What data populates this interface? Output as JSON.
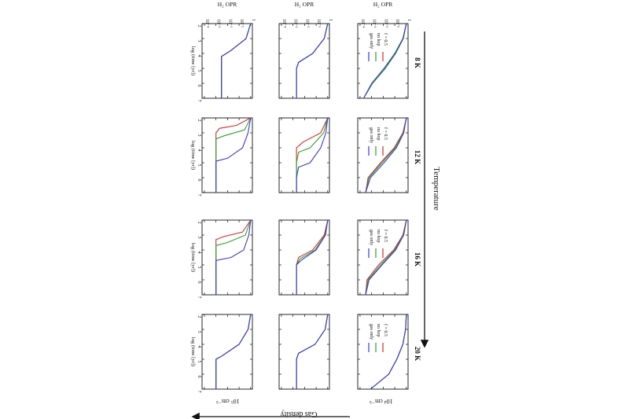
{
  "chart_data": {
    "type": "line",
    "layout": "grid of 3 density rows x 4 temperature columns, figure rotated 90 degrees clockwise",
    "y_axis_label": "H₂ OPR",
    "x_axis_label": "log (time [yr])",
    "x_ticks": [
      2,
      3,
      4,
      5,
      6,
      7
    ],
    "y_ticks": [
      "1",
      "10⁻¹",
      "10⁻²",
      "10⁻³",
      "10⁻⁴"
    ],
    "y_scale": "log",
    "xlim": [
      2,
      7
    ],
    "temperature_arrow_label": "Temperature",
    "density_arrow_label": "Gas density",
    "temperatures": [
      "8 K",
      "12 K",
      "16 K",
      "20 K"
    ],
    "density_labels": [
      "10⁴ cm⁻³",
      "10⁵ cm⁻³"
    ],
    "legend": [
      "f = 0.5",
      "no hop",
      "gas only"
    ],
    "colors": {
      "f05": "#d62a2a",
      "nohop": "#2aa02a",
      "gasonly": "#3a3ad6",
      "axis": "#111111"
    },
    "panels": [
      {
        "row": 0,
        "col": 0,
        "series": [
          {
            "name": "f = 0.5",
            "x": [
              2,
              3,
              4,
              5,
              6,
              7
            ],
            "y": [
              1.0,
              0.55,
              0.12,
              0.015,
              0.0012,
              0.0002
            ]
          },
          {
            "name": "no hop",
            "x": [
              2,
              3,
              4,
              5,
              6,
              7
            ],
            "y": [
              1.0,
              0.55,
              0.12,
              0.015,
              0.0012,
              0.0002
            ]
          },
          {
            "name": "gas only",
            "x": [
              2,
              3,
              4,
              5,
              6,
              7
            ],
            "y": [
              1.0,
              0.5,
              0.1,
              0.012,
              0.001,
              0.0002
            ]
          }
        ]
      },
      {
        "row": 0,
        "col": 1,
        "series": [
          {
            "name": "f = 0.5",
            "x": [
              2,
              3,
              4,
              5,
              6,
              7
            ],
            "y": [
              1.0,
              0.5,
              0.09,
              0.006,
              0.0005,
              0.0003
            ]
          },
          {
            "name": "no hop",
            "x": [
              2,
              3,
              4,
              5,
              6,
              7
            ],
            "y": [
              1.0,
              0.55,
              0.11,
              0.008,
              0.0006,
              0.0003
            ]
          },
          {
            "name": "gas only",
            "x": [
              2,
              3,
              4,
              5,
              6,
              7
            ],
            "y": [
              1.0,
              0.6,
              0.14,
              0.012,
              0.0008,
              0.0003
            ]
          }
        ]
      },
      {
        "row": 0,
        "col": 2,
        "series": [
          {
            "name": "f = 0.5",
            "x": [
              2,
              3,
              4,
              5,
              6,
              7
            ],
            "y": [
              1.0,
              0.5,
              0.08,
              0.004,
              0.0004,
              0.0003
            ]
          },
          {
            "name": "no hop",
            "x": [
              2,
              3,
              4,
              5,
              6,
              7
            ],
            "y": [
              1.0,
              0.55,
              0.1,
              0.006,
              0.0005,
              0.0003
            ]
          },
          {
            "name": "gas only",
            "x": [
              2,
              3,
              4,
              5,
              6,
              7
            ],
            "y": [
              1.0,
              0.6,
              0.12,
              0.008,
              0.0006,
              0.0003
            ]
          }
        ]
      },
      {
        "row": 0,
        "col": 3,
        "series": [
          {
            "name": "f = 0.5",
            "x": [
              2,
              3,
              4,
              5,
              6,
              7
            ],
            "y": [
              1.0,
              0.85,
              0.5,
              0.15,
              0.03,
              0.0008
            ]
          },
          {
            "name": "no hop",
            "x": [
              2,
              3,
              4,
              5,
              6,
              7
            ],
            "y": [
              1.0,
              0.85,
              0.5,
              0.15,
              0.03,
              0.0008
            ]
          },
          {
            "name": "gas only",
            "x": [
              2,
              3,
              4,
              5,
              6,
              7
            ],
            "y": [
              1.0,
              0.85,
              0.5,
              0.15,
              0.03,
              0.0008
            ]
          }
        ]
      },
      {
        "row": 1,
        "col": 0,
        "series": [
          {
            "name": "f = 0.5",
            "x": [
              2,
              3,
              4,
              4.6,
              5,
              6,
              7
            ],
            "y": [
              1.0,
              0.5,
              0.05,
              0.003,
              0.002,
              0.002,
              0.002
            ]
          },
          {
            "name": "no hop",
            "x": [
              2,
              3,
              4,
              4.6,
              5,
              6,
              7
            ],
            "y": [
              1.0,
              0.5,
              0.05,
              0.003,
              0.002,
              0.002,
              0.002
            ]
          },
          {
            "name": "gas only",
            "x": [
              2,
              3,
              4,
              4.6,
              5,
              6,
              7
            ],
            "y": [
              1.0,
              0.5,
              0.05,
              0.003,
              0.002,
              0.002,
              0.002
            ]
          }
        ]
      },
      {
        "row": 1,
        "col": 1,
        "series": [
          {
            "name": "f = 0.5",
            "x": [
              2,
              3,
              3.6,
              4,
              5,
              6,
              7
            ],
            "y": [
              1.0,
              0.25,
              0.008,
              0.002,
              0.002,
              0.002,
              0.002
            ]
          },
          {
            "name": "no hop",
            "x": [
              2,
              3,
              4,
              4.3,
              5,
              6,
              7
            ],
            "y": [
              1.0,
              0.45,
              0.03,
              0.003,
              0.002,
              0.002,
              0.002
            ]
          },
          {
            "name": "gas only",
            "x": [
              2,
              3,
              4,
              5,
              5.3,
              6,
              7
            ],
            "y": [
              1.0,
              0.7,
              0.25,
              0.03,
              0.003,
              0.002,
              0.002
            ]
          }
        ]
      },
      {
        "row": 1,
        "col": 2,
        "series": [
          {
            "name": "f = 0.5",
            "x": [
              2,
              3,
              4,
              4.5,
              5,
              6,
              7
            ],
            "y": [
              1.0,
              0.5,
              0.05,
              0.003,
              0.002,
              0.002,
              0.002
            ]
          },
          {
            "name": "no hop",
            "x": [
              2,
              3,
              4,
              4.6,
              5,
              6,
              7
            ],
            "y": [
              1.0,
              0.6,
              0.08,
              0.004,
              0.002,
              0.002,
              0.002
            ]
          },
          {
            "name": "gas only",
            "x": [
              2,
              3,
              4,
              4.7,
              5,
              6,
              7
            ],
            "y": [
              1.0,
              0.65,
              0.1,
              0.005,
              0.002,
              0.002,
              0.002
            ]
          }
        ]
      },
      {
        "row": 1,
        "col": 3,
        "series": [
          {
            "name": "f = 0.5",
            "x": [
              2,
              3,
              4,
              4.6,
              5,
              6,
              7
            ],
            "y": [
              1.0,
              0.6,
              0.08,
              0.003,
              0.002,
              0.002,
              0.002
            ]
          },
          {
            "name": "no hop",
            "x": [
              2,
              3,
              4,
              4.6,
              5,
              6,
              7
            ],
            "y": [
              1.0,
              0.6,
              0.08,
              0.003,
              0.002,
              0.002,
              0.002
            ]
          },
          {
            "name": "gas only",
            "x": [
              2,
              3,
              4,
              4.6,
              5,
              6,
              7
            ],
            "y": [
              1.0,
              0.6,
              0.08,
              0.003,
              0.002,
              0.002,
              0.002
            ]
          }
        ]
      },
      {
        "row": 2,
        "col": 0,
        "series": [
          {
            "name": "f = 0.5",
            "x": [
              2,
              3,
              3.8,
              4.2,
              5,
              6,
              7
            ],
            "y": [
              1.0,
              0.4,
              0.02,
              0.003,
              0.003,
              0.003,
              0.003
            ]
          },
          {
            "name": "no hop",
            "x": [
              2,
              3,
              3.8,
              4.2,
              5,
              6,
              7
            ],
            "y": [
              1.0,
              0.4,
              0.02,
              0.003,
              0.003,
              0.003,
              0.003
            ]
          },
          {
            "name": "gas only",
            "x": [
              2,
              3,
              3.8,
              4.2,
              5,
              6,
              7
            ],
            "y": [
              1.0,
              0.4,
              0.02,
              0.003,
              0.003,
              0.003,
              0.003
            ]
          }
        ]
      },
      {
        "row": 2,
        "col": 1,
        "series": [
          {
            "name": "f = 0.5",
            "x": [
              2,
              2.5,
              2.7,
              3,
              5,
              7
            ],
            "y": [
              1.0,
              0.06,
              0.002,
              0.001,
              0.001,
              0.001
            ]
          },
          {
            "name": "no hop",
            "x": [
              2,
              2.8,
              3.2,
              3.4,
              5,
              7
            ],
            "y": [
              1.0,
              0.3,
              0.005,
              0.001,
              0.001,
              0.001
            ]
          },
          {
            "name": "gas only",
            "x": [
              2,
              3,
              4,
              4.7,
              4.9,
              5,
              7
            ],
            "y": [
              1.0,
              0.6,
              0.2,
              0.01,
              0.001,
              0.001,
              0.001
            ]
          }
        ]
      },
      {
        "row": 2,
        "col": 2,
        "series": [
          {
            "name": "f = 0.5",
            "x": [
              2,
              2.8,
              3.1,
              3.3,
              5,
              7
            ],
            "y": [
              1.0,
              0.2,
              0.005,
              0.001,
              0.001,
              0.001
            ]
          },
          {
            "name": "no hop",
            "x": [
              2,
              3,
              3.5,
              3.7,
              5,
              7
            ],
            "y": [
              1.0,
              0.35,
              0.01,
              0.001,
              0.001,
              0.001
            ]
          },
          {
            "name": "gas only",
            "x": [
              2,
              3,
              4,
              4.5,
              4.7,
              5,
              7
            ],
            "y": [
              1.0,
              0.7,
              0.25,
              0.02,
              0.001,
              0.001,
              0.001
            ]
          }
        ]
      },
      {
        "row": 2,
        "col": 3,
        "series": [
          {
            "name": "f = 0.5",
            "x": [
              2,
              3,
              4,
              4.8,
              5,
              7
            ],
            "y": [
              1.0,
              0.6,
              0.1,
              0.003,
              0.001,
              0.001
            ]
          },
          {
            "name": "no hop",
            "x": [
              2,
              3,
              4,
              4.8,
              5,
              7
            ],
            "y": [
              1.0,
              0.6,
              0.1,
              0.003,
              0.001,
              0.001
            ]
          },
          {
            "name": "gas only",
            "x": [
              2,
              3,
              4,
              4.8,
              5,
              7
            ],
            "y": [
              1.0,
              0.6,
              0.1,
              0.003,
              0.001,
              0.001
            ]
          }
        ]
      }
    ]
  }
}
